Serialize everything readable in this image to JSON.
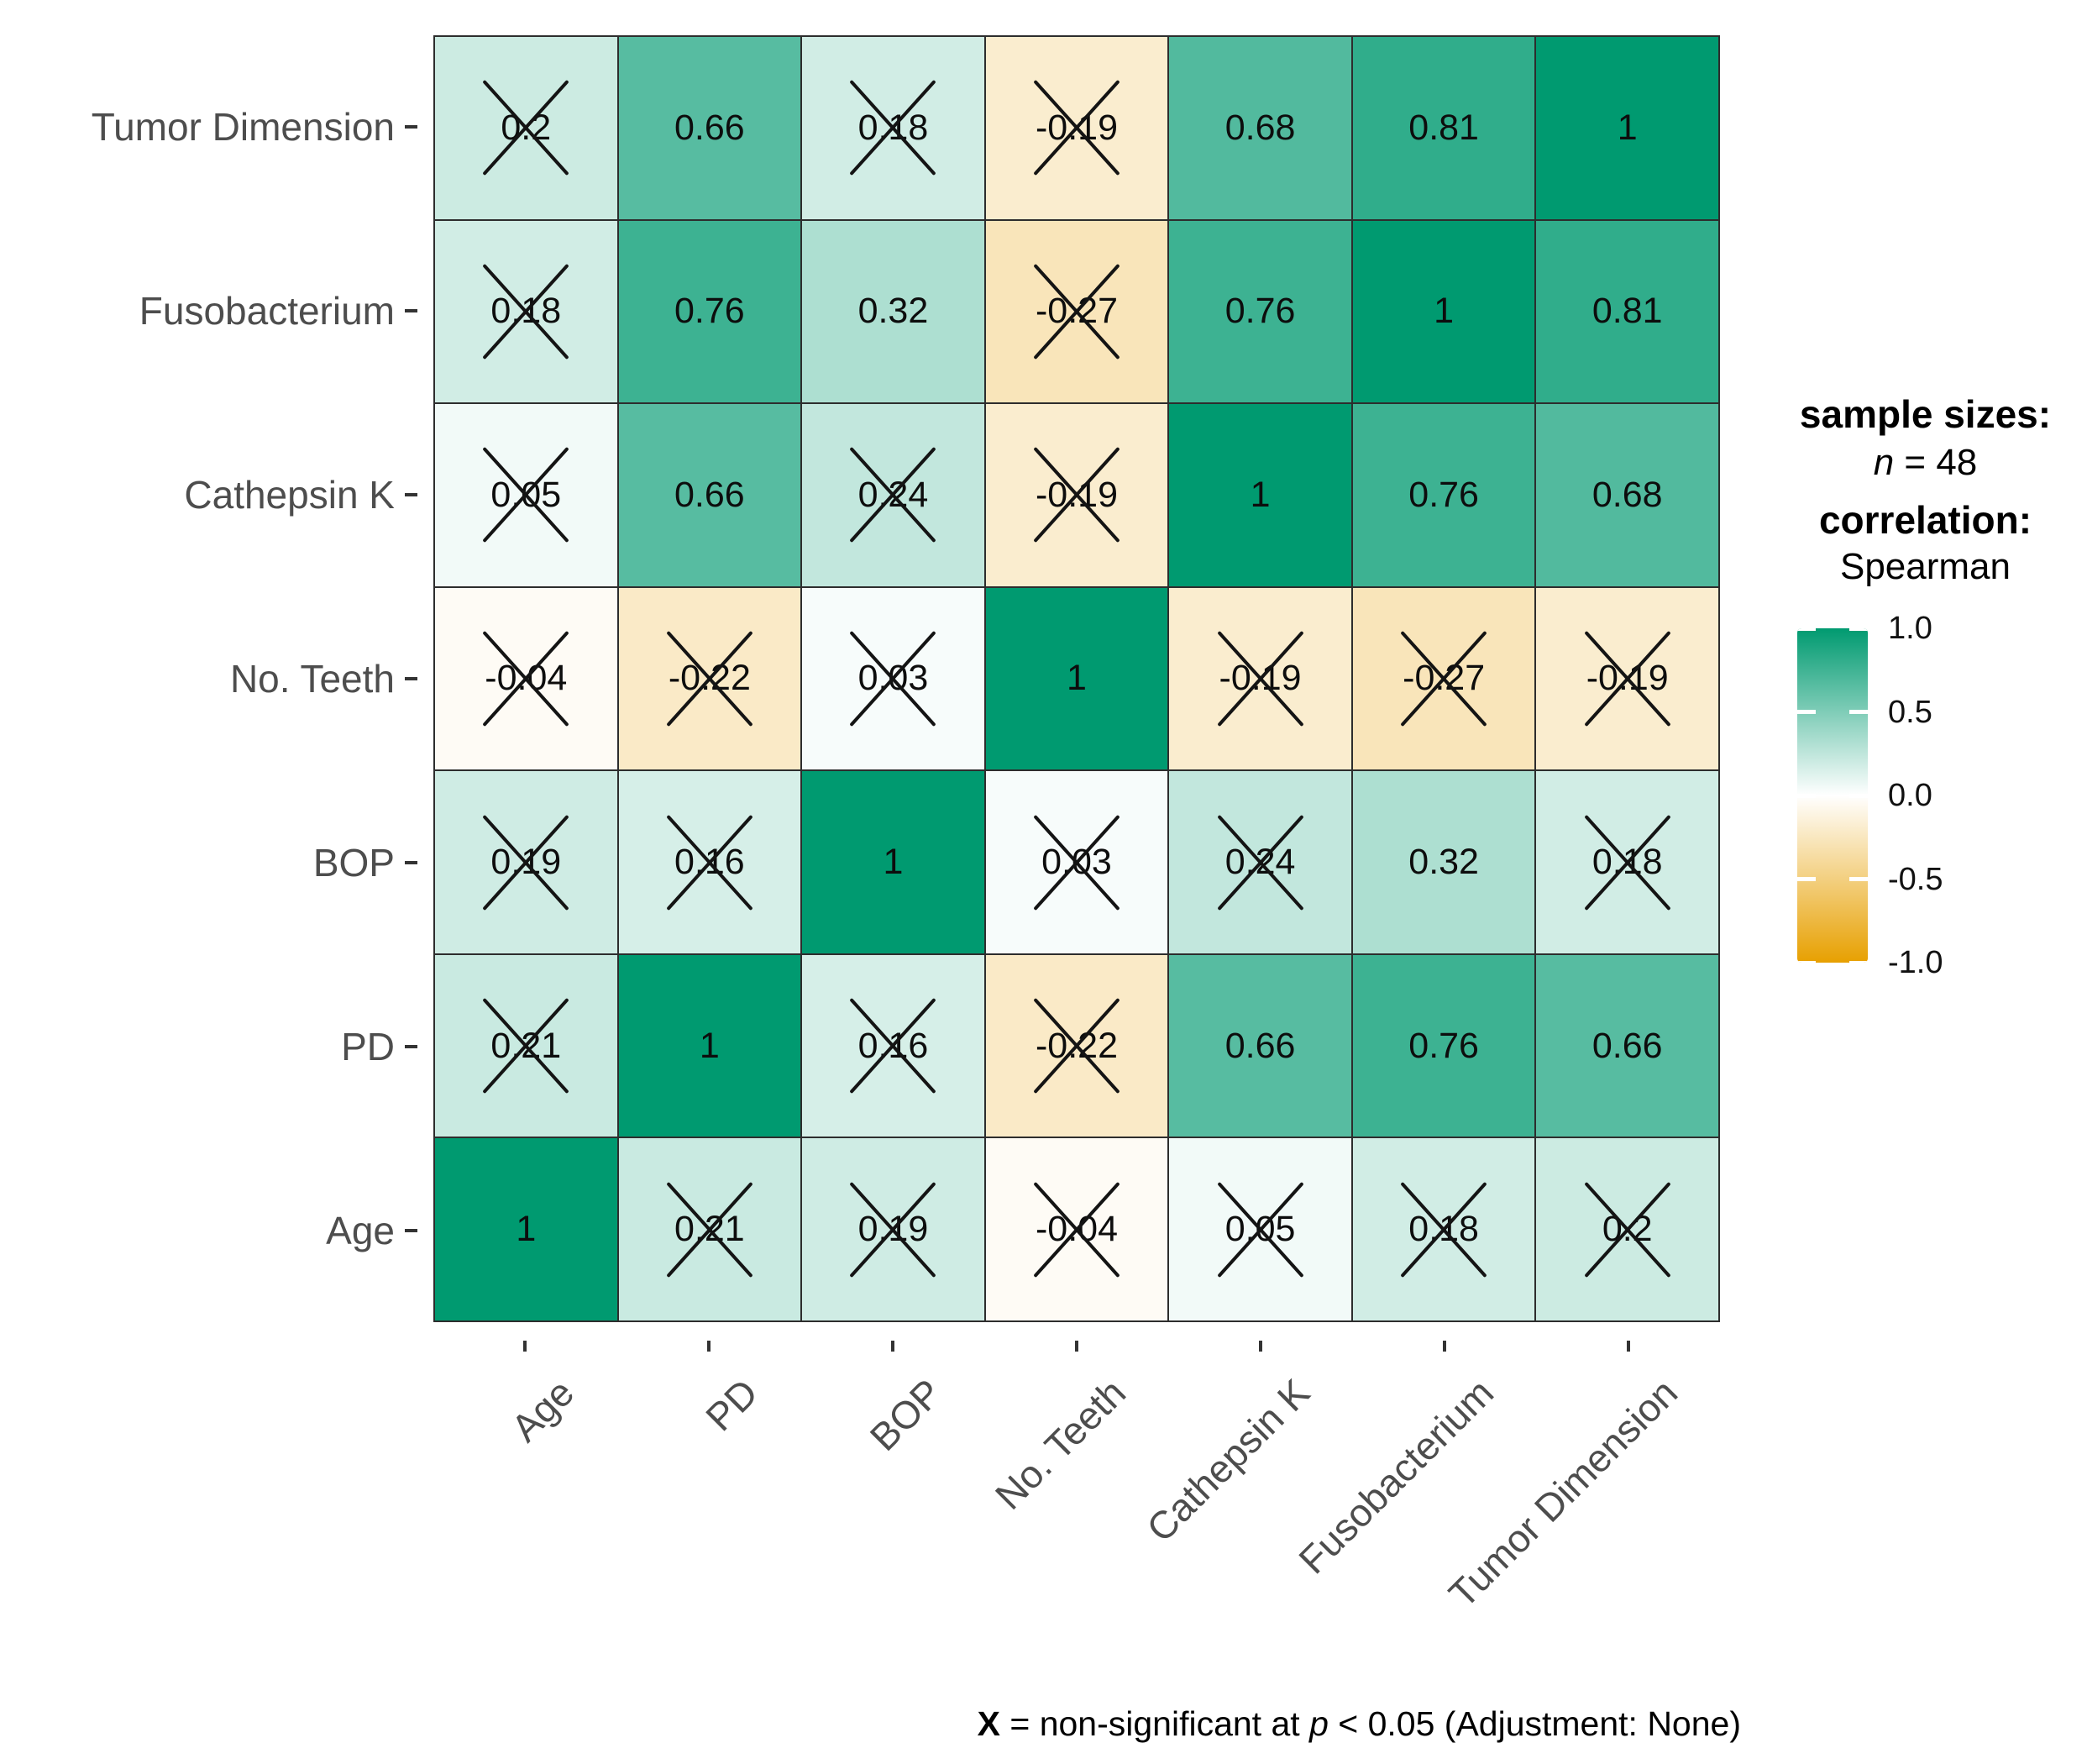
{
  "figure": {
    "background": "#ffffff",
    "axis_text_color": "#4d4d4d",
    "grid_line_color": "#2d2d2d",
    "tick_color": "#333333"
  },
  "chart_data": {
    "type": "heatmap",
    "title": "",
    "x_categories": [
      "Age",
      "PD",
      "BOP",
      "No. Teeth",
      "Cathepsin K",
      "Fusobacterium",
      "Tumor Dimension"
    ],
    "y_categories_top_to_bottom": [
      "Tumor Dimension",
      "Fusobacterium",
      "Cathepsin K",
      "No. Teeth",
      "BOP",
      "PD",
      "Age"
    ],
    "value_range": [
      -1,
      1
    ],
    "colorscale": {
      "max_color_hex": "#009A70",
      "mid_color_hex": "#FFFFFF",
      "min_color_hex": "#E7A001",
      "max_value": 1.0,
      "mid_value": 0.0,
      "min_value": -1.0
    },
    "non_significant_marker": "X",
    "rows": [
      {
        "label": "Tumor Dimension",
        "cells": [
          {
            "display": "0.2",
            "ns": true
          },
          {
            "display": "0.66",
            "ns": false
          },
          {
            "display": "0.18",
            "ns": true
          },
          {
            "display": "-0.19",
            "ns": true
          },
          {
            "display": "0.68",
            "ns": false
          },
          {
            "display": "0.81",
            "ns": false
          },
          {
            "display": "1",
            "ns": false
          }
        ]
      },
      {
        "label": "Fusobacterium",
        "cells": [
          {
            "display": "0.18",
            "ns": true
          },
          {
            "display": "0.76",
            "ns": false
          },
          {
            "display": "0.32",
            "ns": false
          },
          {
            "display": "-0.27",
            "ns": true
          },
          {
            "display": "0.76",
            "ns": false
          },
          {
            "display": "1",
            "ns": false
          },
          {
            "display": "0.81",
            "ns": false
          }
        ]
      },
      {
        "label": "Cathepsin K",
        "cells": [
          {
            "display": "0.05",
            "ns": true
          },
          {
            "display": "0.66",
            "ns": false
          },
          {
            "display": "0.24",
            "ns": true
          },
          {
            "display": "-0.19",
            "ns": true
          },
          {
            "display": "1",
            "ns": false
          },
          {
            "display": "0.76",
            "ns": false
          },
          {
            "display": "0.68",
            "ns": false
          }
        ]
      },
      {
        "label": "No. Teeth",
        "cells": [
          {
            "display": "-0.04",
            "ns": true
          },
          {
            "display": "-0.22",
            "ns": true
          },
          {
            "display": "0.03",
            "ns": true
          },
          {
            "display": "1",
            "ns": false
          },
          {
            "display": "-0.19",
            "ns": true
          },
          {
            "display": "-0.27",
            "ns": true
          },
          {
            "display": "-0.19",
            "ns": true
          }
        ]
      },
      {
        "label": "BOP",
        "cells": [
          {
            "display": "0.19",
            "ns": true
          },
          {
            "display": "0.16",
            "ns": true
          },
          {
            "display": "1",
            "ns": false
          },
          {
            "display": "0.03",
            "ns": true
          },
          {
            "display": "0.24",
            "ns": true
          },
          {
            "display": "0.32",
            "ns": false
          },
          {
            "display": "0.18",
            "ns": true
          }
        ]
      },
      {
        "label": "PD",
        "cells": [
          {
            "display": "0.21",
            "ns": true
          },
          {
            "display": "1",
            "ns": false
          },
          {
            "display": "0.16",
            "ns": true
          },
          {
            "display": "-0.22",
            "ns": true
          },
          {
            "display": "0.66",
            "ns": false
          },
          {
            "display": "0.76",
            "ns": false
          },
          {
            "display": "0.66",
            "ns": false
          }
        ]
      },
      {
        "label": "Age",
        "cells": [
          {
            "display": "1",
            "ns": false
          },
          {
            "display": "0.21",
            "ns": true
          },
          {
            "display": "0.19",
            "ns": true
          },
          {
            "display": "-0.04",
            "ns": true
          },
          {
            "display": "0.05",
            "ns": true
          },
          {
            "display": "0.18",
            "ns": true
          },
          {
            "display": "0.2",
            "ns": true
          }
        ]
      }
    ],
    "legend": {
      "sample_sizes_title": "sample sizes:",
      "sample_size_segments": [
        {
          "text": "n",
          "style": "italic"
        },
        {
          "text": " = 48",
          "style": "normal"
        }
      ],
      "correlation_title": "correlation:",
      "correlation_method": "Spearman",
      "colorbar_tick_labels": [
        "1.0",
        "0.5",
        "0.0",
        "-0.5",
        "-1.0"
      ]
    },
    "caption_segments": [
      {
        "text": "X",
        "style": "bold"
      },
      {
        "text": " = non-significant at ",
        "style": "normal"
      },
      {
        "text": "p",
        "style": "italic"
      },
      {
        "text": " < 0.05 (Adjustment: None)",
        "style": "normal"
      }
    ]
  }
}
